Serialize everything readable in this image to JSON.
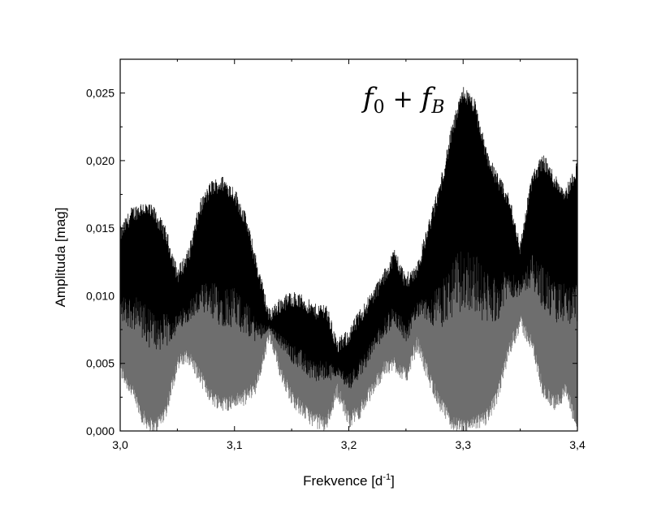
{
  "chart_data": {
    "type": "line",
    "title": "",
    "annotation": {
      "label": "f0 + fB",
      "main_left": "f",
      "sub_left": "0",
      "operator": "+",
      "main_right": "f",
      "sub_right": "B"
    },
    "xlabel": "Frekvence [d-1]",
    "xlabel_parts": {
      "main": "Frekvence [d",
      "sup": "-1",
      "close": "]"
    },
    "ylabel": "Amplituda [mag]",
    "xlim": [
      3.0,
      3.4
    ],
    "ylim": [
      0.0,
      0.0275
    ],
    "x_ticks": [
      3.0,
      3.1,
      3.2,
      3.3,
      3.4
    ],
    "x_tick_labels": [
      "3,0",
      "3,1",
      "3,2",
      "3,3",
      "3,4"
    ],
    "y_ticks": [
      0.0,
      0.005,
      0.01,
      0.015,
      0.02,
      0.025
    ],
    "y_tick_labels": [
      "0,000",
      "0,005",
      "0,010",
      "0,015",
      "0,020",
      "0,025"
    ],
    "grid": false,
    "series": [
      {
        "color": "#000000",
        "envelope_x": [
          3.0,
          3.01,
          3.02,
          3.03,
          3.04,
          3.05,
          3.06,
          3.07,
          3.08,
          3.09,
          3.1,
          3.11,
          3.12,
          3.13,
          3.14,
          3.15,
          3.16,
          3.17,
          3.18,
          3.19,
          3.2,
          3.21,
          3.22,
          3.23,
          3.24,
          3.25,
          3.26,
          3.27,
          3.28,
          3.29,
          3.3,
          3.31,
          3.32,
          3.33,
          3.34,
          3.35,
          3.36,
          3.37,
          3.38,
          3.39,
          3.4
        ],
        "upper": [
          0.0145,
          0.016,
          0.0165,
          0.016,
          0.0145,
          0.0115,
          0.013,
          0.0165,
          0.018,
          0.0183,
          0.0175,
          0.0155,
          0.012,
          0.0085,
          0.0093,
          0.0098,
          0.0095,
          0.0088,
          0.009,
          0.0062,
          0.007,
          0.0085,
          0.0098,
          0.0112,
          0.013,
          0.011,
          0.012,
          0.015,
          0.018,
          0.022,
          0.025,
          0.024,
          0.0205,
          0.0185,
          0.017,
          0.0135,
          0.0185,
          0.02,
          0.0185,
          0.0175,
          0.0195
        ],
        "lower": [
          0.0045,
          0.003,
          0.001,
          0.0002,
          0.0015,
          0.005,
          0.0055,
          0.004,
          0.0025,
          0.002,
          0.0022,
          0.0025,
          0.0035,
          0.007,
          0.0045,
          0.0025,
          0.0015,
          0.0008,
          0.0005,
          0.003,
          0.0008,
          0.0015,
          0.003,
          0.0045,
          0.005,
          0.004,
          0.0065,
          0.004,
          0.002,
          0.0006,
          0.0002,
          0.0005,
          0.001,
          0.0025,
          0.006,
          0.008,
          0.0065,
          0.003,
          0.002,
          0.003,
          0.0002
        ]
      }
    ]
  }
}
